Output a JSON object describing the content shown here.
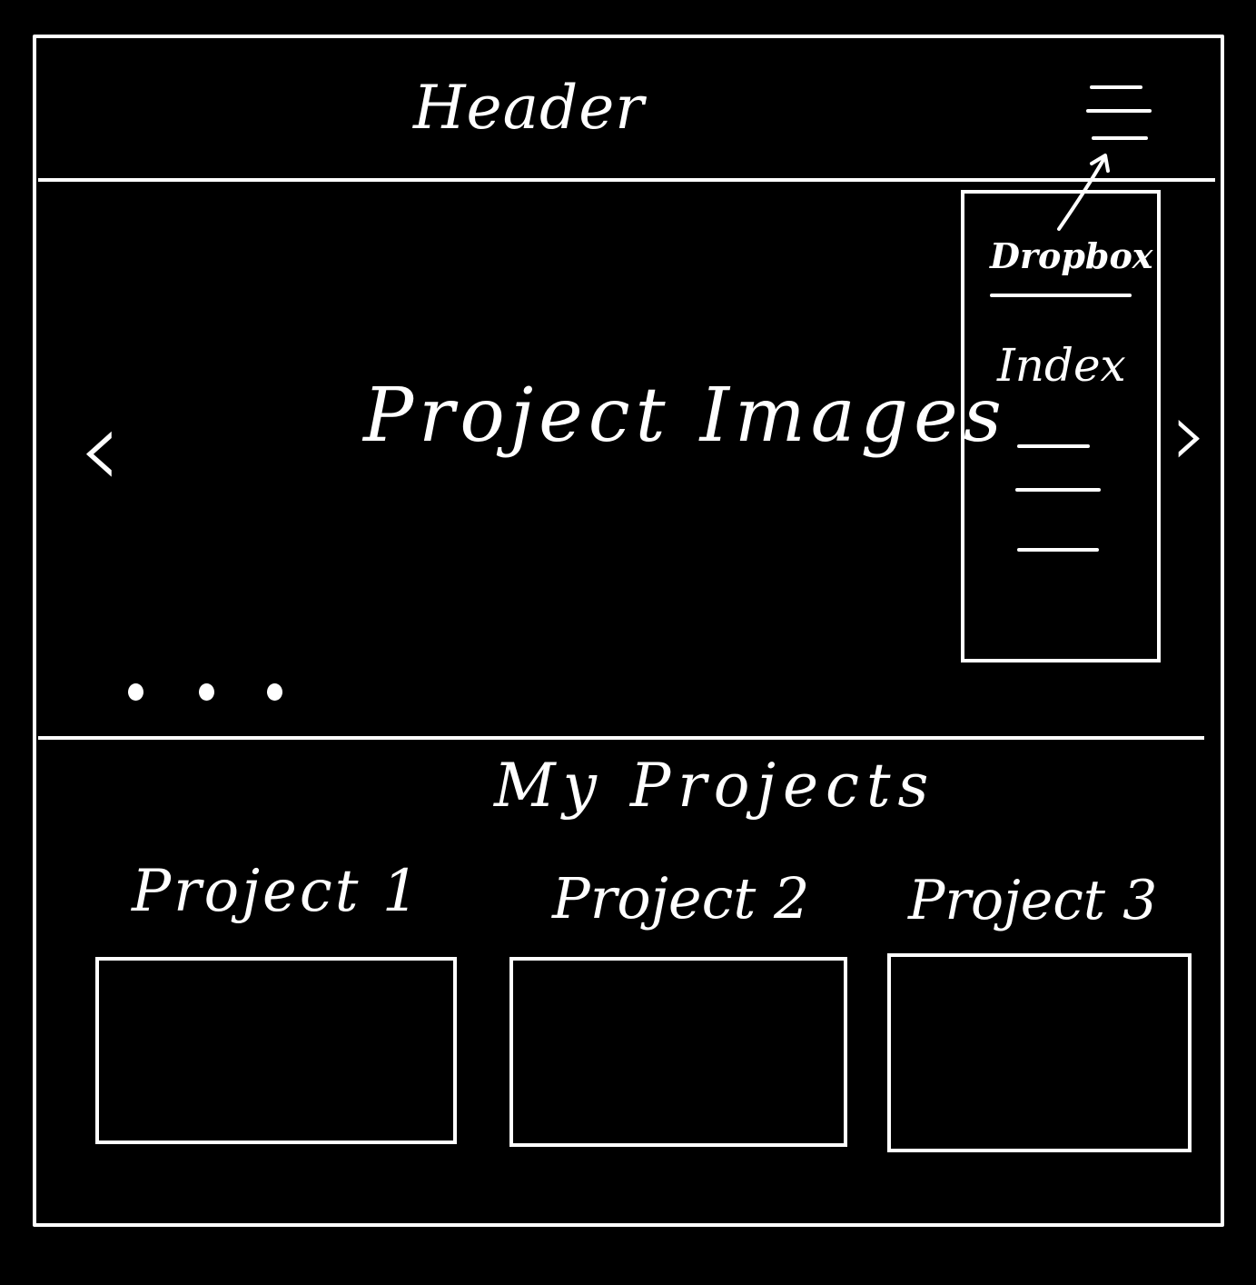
{
  "header": {
    "title": "Header",
    "menu_icon": "hamburger-menu-icon"
  },
  "dropdown": {
    "title": "Dropbox",
    "items": [
      "Index",
      "",
      "",
      ""
    ]
  },
  "carousel": {
    "label": "Project Images",
    "prev_icon": "chevron-left-icon",
    "next_icon": "chevron-right-icon",
    "prev_glyph": "‹",
    "next_glyph": "›",
    "dots": 3
  },
  "projects": {
    "title": "My Projects",
    "items": [
      {
        "label": "Project 1"
      },
      {
        "label": "Project 2"
      },
      {
        "label": "Project 3"
      }
    ]
  },
  "colors": {
    "background": "#000000",
    "stroke": "#ffffff"
  }
}
